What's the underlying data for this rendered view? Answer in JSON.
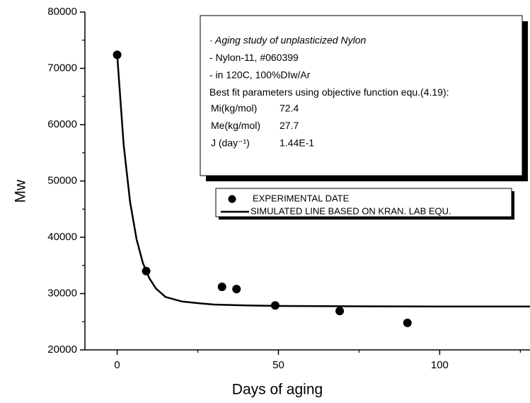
{
  "chart_data": {
    "type": "scatter-line",
    "x_label": "Days of aging",
    "y_label": "Mw",
    "xlim": [
      -10,
      128
    ],
    "ylim": [
      20000,
      80000
    ],
    "xticks": [
      0,
      50,
      100
    ],
    "yticks": [
      20000,
      30000,
      40000,
      50000,
      60000,
      70000,
      80000
    ],
    "xminorticks": [
      25,
      75,
      125
    ],
    "yminorticks": [
      25000,
      35000,
      45000,
      55000,
      65000,
      75000
    ],
    "series": [
      {
        "name": "EXPERIMENTAL DATE",
        "kind": "scatter",
        "color": "#000000",
        "x": [
          0,
          9,
          32.5,
          37,
          49,
          69,
          90
        ],
        "values": [
          72400,
          34000,
          31200,
          30800,
          27900,
          26900,
          24800
        ]
      },
      {
        "name": "SIMULATED LINE BASED ON KRAN. LAB EQU.",
        "kind": "line",
        "color": "#000000",
        "x": [
          0,
          2,
          4,
          6,
          8,
          10,
          12,
          15,
          20,
          25,
          30,
          40,
          50,
          70,
          100,
          128
        ],
        "values": [
          72400,
          56500,
          46300,
          39700,
          35400,
          32700,
          30900,
          29400,
          28600,
          28300,
          28050,
          27900,
          27800,
          27750,
          27700,
          27700
        ]
      }
    ],
    "annotation": {
      "lines": [
        "· Aging study of unplasticized Nylon",
        "- Nylon-11, #060399",
        "- in 120C, 100%DIw/Ar",
        "Best fit parameters using objective function equ.(4.19):"
      ],
      "params": [
        [
          "Mi(kg/mol)",
          "72.4"
        ],
        [
          "Me(kg/mol)",
          "27.7"
        ],
        [
          "J (day⁻¹)",
          "1.44E-1"
        ]
      ]
    }
  }
}
